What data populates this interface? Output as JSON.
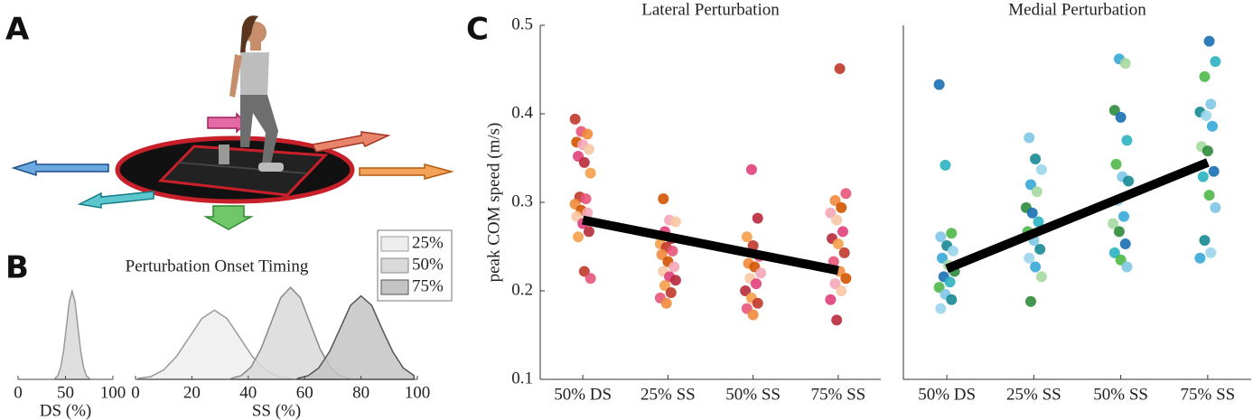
{
  "panel_labels": [
    "A",
    "B",
    "C"
  ],
  "chart_data": [
    {
      "type": "density",
      "xlabel": "DS (%)",
      "xlim": [
        0,
        100
      ],
      "xticks": [
        0,
        50,
        100
      ],
      "ylim": [
        0,
        1
      ],
      "series": [
        {
          "color": "#d9d9d9",
          "x": [
            39,
            42,
            45,
            48,
            51,
            54,
            57,
            60,
            63,
            66,
            69,
            72,
            75
          ],
          "values": [
            0.01,
            0.04,
            0.13,
            0.3,
            0.56,
            0.82,
            0.93,
            0.82,
            0.56,
            0.3,
            0.13,
            0.04,
            0.01
          ]
        }
      ]
    },
    {
      "type": "density",
      "title": "Perturbation Onset Timing",
      "xlabel": "SS (%)",
      "xlim": [
        0,
        100
      ],
      "xticks": [
        0,
        20,
        40,
        60,
        80,
        100
      ],
      "ylim": [
        0,
        1
      ],
      "series": [
        {
          "name": "25%",
          "color": "#eeeeee",
          "x": [
            1,
            5.5,
            10,
            14.5,
            19,
            23.5,
            28,
            32.5,
            37,
            41.5,
            46,
            50.5,
            55
          ],
          "values": [
            0.01,
            0.03,
            0.1,
            0.24,
            0.44,
            0.64,
            0.73,
            0.64,
            0.44,
            0.24,
            0.1,
            0.03,
            0.01
          ]
        },
        {
          "name": "50%",
          "color": "#d9d9d9",
          "x": [
            34,
            37.5,
            41,
            44.5,
            48,
            51.5,
            55,
            58.5,
            62,
            65.5,
            69,
            72.5,
            76
          ],
          "values": [
            0.01,
            0.04,
            0.13,
            0.32,
            0.59,
            0.86,
            0.97,
            0.86,
            0.59,
            0.32,
            0.13,
            0.04,
            0.01
          ]
        },
        {
          "name": "75%",
          "color": "#c4c4c4",
          "x": [
            57.5,
            61.3,
            65,
            68.8,
            72.5,
            76.3,
            80,
            83.8,
            87.5,
            91.3,
            95,
            98.8
          ],
          "values": [
            0.01,
            0.04,
            0.12,
            0.29,
            0.53,
            0.78,
            0.88,
            0.78,
            0.53,
            0.29,
            0.12,
            0.04
          ]
        }
      ]
    },
    {
      "type": "strip",
      "title": "Lateral Perturbation",
      "ylabel": "peak COM speed (m/s)",
      "categories": [
        "50% DS",
        "25% SS",
        "50% SS",
        "75% SS"
      ],
      "ylim": [
        0.1,
        0.5
      ],
      "yticks": [
        0.1,
        0.2,
        0.3,
        0.4,
        0.5
      ],
      "colors": [
        "#c0392b",
        "#e8557a",
        "#f08a3c",
        "#d35400",
        "#f4a6b8",
        "#f7c6a3",
        "#e0407a",
        "#b82a3c",
        "#f5a04a"
      ],
      "groups": [
        [
          0.394,
          0.38,
          0.377,
          0.368,
          0.365,
          0.36,
          0.352,
          0.345,
          0.333,
          0.306,
          0.304,
          0.298,
          0.291,
          0.288,
          0.284,
          0.276,
          0.267,
          0.261,
          0.222,
          0.214
        ],
        [
          0.304,
          0.28,
          0.278,
          0.267,
          0.259,
          0.253,
          0.249,
          0.245,
          0.241,
          0.233,
          0.227,
          0.222,
          0.216,
          0.212,
          0.206,
          0.198,
          0.192,
          0.186
        ],
        [
          0.337,
          0.282,
          0.261,
          0.251,
          0.239,
          0.231,
          0.227,
          0.22,
          0.214,
          0.208,
          0.2,
          0.192,
          0.186,
          0.18,
          0.173
        ],
        [
          0.451,
          0.31,
          0.302,
          0.294,
          0.288,
          0.28,
          0.267,
          0.259,
          0.253,
          0.243,
          0.233,
          0.222,
          0.214,
          0.208,
          0.2,
          0.19,
          0.167
        ]
      ],
      "fit": [
        0.28,
        0.223
      ],
      "fit_color": "#000000"
    },
    {
      "type": "strip",
      "title": "Medial Perturbation",
      "categories": [
        "50% DS",
        "25% SS",
        "50% SS",
        "75% SS"
      ],
      "ylim": [
        0.1,
        0.5
      ],
      "colors": [
        "#1a6fb5",
        "#2bb3c0",
        "#4fb848",
        "#7fc6e6",
        "#178a93",
        "#9bd6ec",
        "#35a9d8",
        "#a6d9a0",
        "#2e8b3a"
      ],
      "groups": [
        [
          0.433,
          0.342,
          0.265,
          0.261,
          0.251,
          0.245,
          0.237,
          0.229,
          0.222,
          0.216,
          0.21,
          0.204,
          0.196,
          0.19,
          0.18
        ],
        [
          0.373,
          0.349,
          0.337,
          0.32,
          0.312,
          0.294,
          0.288,
          0.278,
          0.267,
          0.257,
          0.247,
          0.237,
          0.227,
          0.216,
          0.188
        ],
        [
          0.462,
          0.457,
          0.404,
          0.396,
          0.37,
          0.343,
          0.329,
          0.324,
          0.302,
          0.284,
          0.276,
          0.267,
          0.253,
          0.243,
          0.235,
          0.227
        ],
        [
          0.482,
          0.459,
          0.442,
          0.411,
          0.402,
          0.398,
          0.386,
          0.363,
          0.358,
          0.335,
          0.329,
          0.308,
          0.294,
          0.257,
          0.243,
          0.237
        ]
      ],
      "fit": [
        0.225,
        0.345
      ],
      "fit_color": "#000000"
    }
  ]
}
